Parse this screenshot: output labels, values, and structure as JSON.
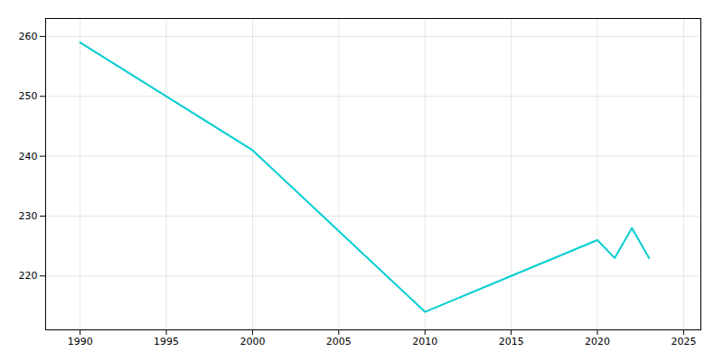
{
  "chart_data": {
    "type": "line",
    "x": [
      1990,
      2000,
      2010,
      2015,
      2020,
      2021,
      2022,
      2023
    ],
    "values": [
      259,
      241,
      214,
      220,
      226,
      223,
      228,
      223
    ],
    "color": "#00CED1",
    "xlim": [
      1988,
      2026
    ],
    "ylim": [
      211,
      263
    ],
    "xticks": [
      1990,
      1995,
      2000,
      2005,
      2010,
      2015,
      2020,
      2025
    ],
    "yticks": [
      220,
      230,
      240,
      250,
      260
    ],
    "grid": true
  }
}
